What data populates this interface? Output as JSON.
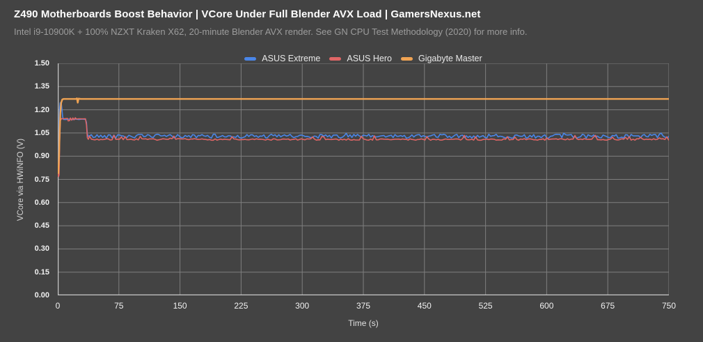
{
  "header": {
    "title": "Z490 Motherboards Boost Behavior | VCore Under Full Blender AVX Load | GamersNexus.net",
    "subtitle": "Intel i9-10900K + 100% NZXT Kraken X62, 20-minute Blender AVX render. See GN CPU Test Methodology (2020) for more info."
  },
  "axes": {
    "y": {
      "title": "VCore via HWiNFO (V)",
      "min": 0.0,
      "max": 1.5,
      "ticks": [
        "1.50",
        "1.35",
        "1.20",
        "1.05",
        "0.90",
        "0.75",
        "0.60",
        "0.45",
        "0.30",
        "0.15",
        "0.00"
      ]
    },
    "x": {
      "title": "Time (s)",
      "min": 0,
      "max": 750,
      "ticks": [
        0,
        75,
        150,
        225,
        300,
        375,
        450,
        525,
        600,
        675,
        750
      ]
    }
  },
  "colors": {
    "background": "#434343",
    "gridline": "#7f7f7f",
    "axis_line": "#c8c8c8",
    "title_text": "#ffffff",
    "subtitle_text": "#9c9c9c",
    "tick_text": "#f0f0f0"
  },
  "chart_data": {
    "type": "line",
    "title": "Z490 Motherboards Boost Behavior | VCore Under Full Blender AVX Load | GamersNexus.net",
    "xlabel": "Time (s)",
    "ylabel": "VCore via HWiNFO (V)",
    "xlim": [
      0,
      750
    ],
    "ylim": [
      0.0,
      1.5
    ],
    "grid": true,
    "legend_position": "top-center",
    "series": [
      {
        "name": "ASUS Extreme",
        "color": "#4a86e8",
        "width": 1.6,
        "segments": [
          {
            "type": "path",
            "points": [
              [
                0,
                0.805
              ],
              [
                0.8,
                0.82
              ],
              [
                1.6,
                1.05
              ],
              [
                2.2,
                1.21
              ],
              [
                3,
                1.245
              ],
              [
                4.2,
                1.248
              ],
              [
                5.2,
                1.2
              ],
              [
                6,
                1.155
              ],
              [
                7,
                1.138
              ],
              [
                10,
                1.137
              ],
              [
                14,
                1.14
              ],
              [
                18,
                1.137
              ],
              [
                22,
                1.14
              ],
              [
                26,
                1.137
              ],
              [
                30,
                1.14
              ],
              [
                34,
                1.138
              ],
              [
                35.2,
                1.12
              ],
              [
                36.2,
                1.045
              ],
              [
                37.5,
                1.028
              ]
            ]
          },
          {
            "type": "noise",
            "from": 39,
            "to": 750,
            "step": 2.3,
            "base": 1.029,
            "amp": 0.013,
            "spike_p": 0.05,
            "spike_amp": 0.01,
            "seed": 42
          }
        ]
      },
      {
        "name": "ASUS Hero",
        "color": "#e06666",
        "width": 1.6,
        "segments": [
          {
            "type": "path",
            "points": [
              [
                0,
                0.795
              ],
              [
                0.9,
                0.768
              ],
              [
                1.6,
                0.78
              ],
              [
                2.4,
                1.0
              ],
              [
                3.2,
                1.13
              ],
              [
                4.5,
                1.143
              ],
              [
                8,
                1.142
              ],
              [
                12,
                1.144
              ],
              [
                12.8,
                1.128
              ],
              [
                14.5,
                1.13
              ],
              [
                15.5,
                1.147
              ],
              [
                17,
                1.133
              ],
              [
                18.5,
                1.147
              ],
              [
                20,
                1.135
              ],
              [
                21.5,
                1.148
              ],
              [
                23,
                1.14
              ],
              [
                26,
                1.142
              ],
              [
                30,
                1.141
              ],
              [
                34,
                1.142
              ],
              [
                35.3,
                1.1
              ],
              [
                36.3,
                1.02
              ],
              [
                37.5,
                1.009
              ]
            ]
          },
          {
            "type": "noise",
            "from": 39,
            "to": 750,
            "step": 2.3,
            "base": 1.008,
            "amp": 0.005,
            "spike_p": 0.1,
            "spike_amp": 0.026,
            "seed": 7
          }
        ]
      },
      {
        "name": "Gigabyte Master",
        "color": "#f0a353",
        "width": 2.4,
        "segments": [
          {
            "type": "path",
            "points": [
              [
                0,
                0.8
              ],
              [
                0.7,
                0.79
              ],
              [
                1.5,
                0.9
              ],
              [
                2.3,
                1.06
              ],
              [
                3.2,
                1.18
              ],
              [
                4.2,
                1.245
              ],
              [
                5.5,
                1.266
              ],
              [
                7,
                1.27
              ],
              [
                22.5,
                1.27
              ],
              [
                23.5,
                1.274
              ],
              [
                24.5,
                1.246
              ],
              [
                25.5,
                1.272
              ],
              [
                28,
                1.27
              ],
              [
                750,
                1.27
              ]
            ]
          }
        ]
      }
    ]
  }
}
